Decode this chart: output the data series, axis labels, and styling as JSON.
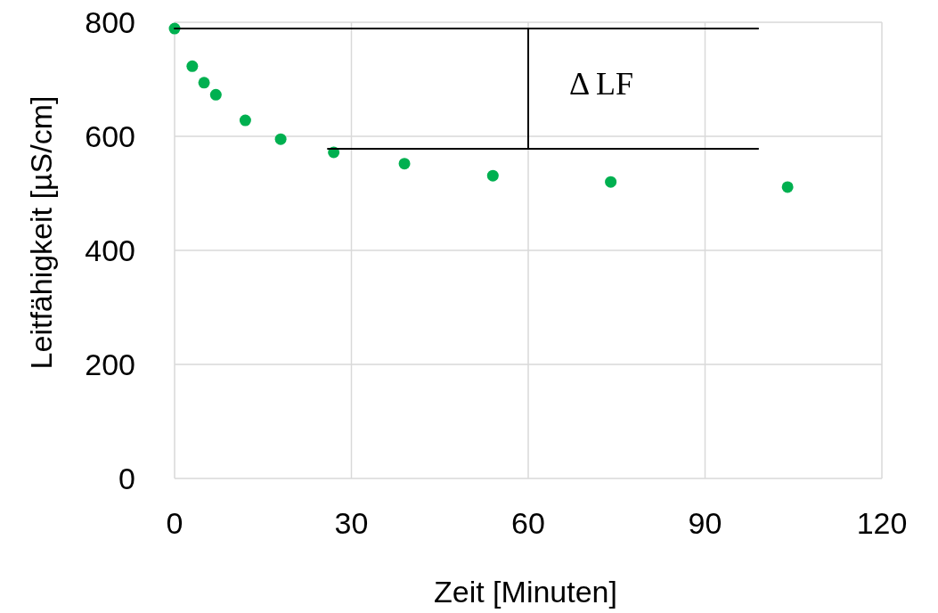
{
  "chart_data": {
    "type": "scatter",
    "xlabel": "Zeit [Minuten]",
    "ylabel": "Leitfähigkeit [µS/cm]",
    "xlim": [
      0,
      120
    ],
    "xticks": [
      0,
      30,
      60,
      90,
      120
    ],
    "ylim": [
      0,
      800
    ],
    "yticks": [
      0,
      200,
      400,
      600,
      800
    ],
    "grid": true,
    "marker": "circle",
    "series": [
      {
        "color": "#00b050",
        "x": [
          0,
          3,
          5,
          7,
          12,
          18,
          27,
          39,
          54,
          74,
          104
        ],
        "values": [
          789,
          723,
          694,
          673,
          628,
          595,
          572,
          552,
          531,
          520,
          511
        ]
      },
      {
        "type": "line",
        "color": "#000000",
        "x": [
          0,
          99
        ],
        "values": [
          789,
          789
        ],
        "marker": "none"
      },
      {
        "type": "line",
        "color": "#000000",
        "x": [
          26,
          99
        ],
        "values": [
          578,
          578
        ],
        "marker": "none"
      },
      {
        "type": "line",
        "color": "#000000",
        "x": [
          60,
          60
        ],
        "values": [
          578,
          789
        ],
        "marker": "none"
      }
    ],
    "annotations": [
      "Δ LF"
    ]
  }
}
